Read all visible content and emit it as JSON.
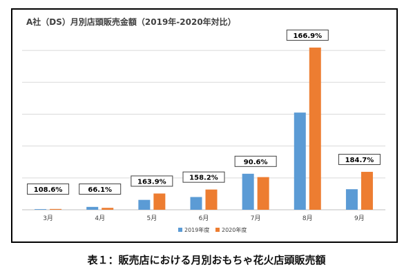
{
  "chart_data": {
    "type": "bar",
    "title": "A社（DS）月別店頭販売金額（2019年-2020年対比）",
    "categories": [
      "3月",
      "4月",
      "5月",
      "6月",
      "7月",
      "8月",
      "9月"
    ],
    "series": [
      {
        "name": "2019年度",
        "values": [
          0.4,
          1.8,
          6.2,
          8.0,
          22.6,
          61.0,
          12.9
        ]
      },
      {
        "name": "2020年度",
        "values": [
          0.5,
          1.2,
          10.2,
          12.7,
          20.5,
          101.8,
          23.8
        ]
      }
    ],
    "ratio_labels": [
      "108.6%",
      "66.1%",
      "163.9%",
      "158.2%",
      "90.6%",
      "166.9%",
      "184.7%"
    ],
    "xlabel": "",
    "ylabel": "",
    "ylim": [
      0,
      110
    ],
    "grid": true,
    "legend_position": "bottom",
    "colors": {
      "2019年度": "#5b9bd5",
      "2020年度": "#ed7d31"
    }
  },
  "caption": "表１：販売店における月別おもちゃ花火店頭販売額"
}
